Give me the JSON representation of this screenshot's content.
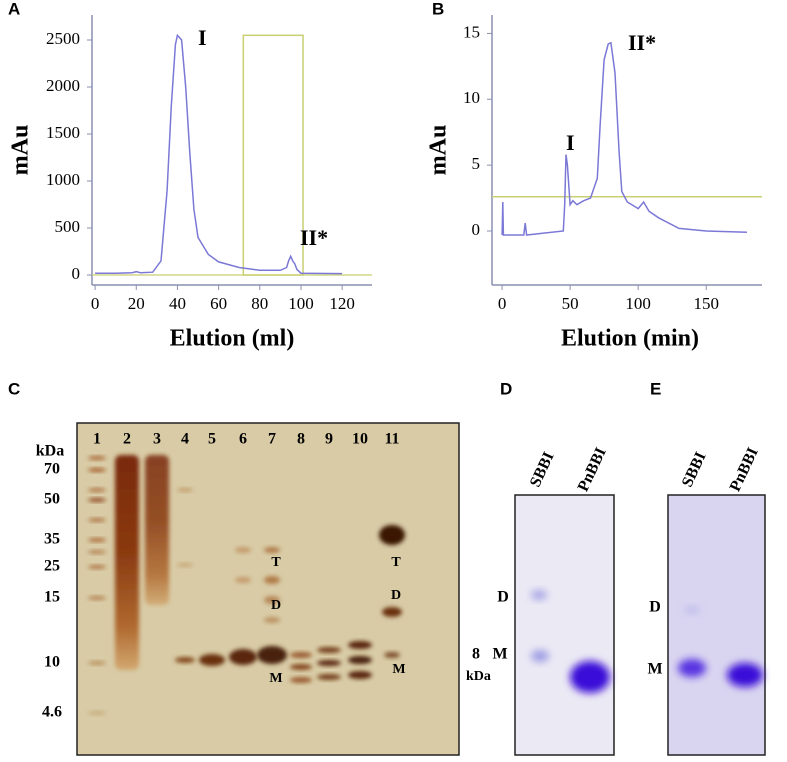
{
  "chart_data": [
    {
      "type": "line",
      "panel": "A",
      "x_label": "Elution (ml)",
      "y_label": "mAu",
      "xlim": [
        -1.5,
        134.5
      ],
      "ylim": [
        -106,
        2766
      ],
      "xticks": [
        0,
        20,
        40,
        60,
        80,
        100,
        120
      ],
      "yticks": [
        0,
        500,
        1000,
        1500,
        2000,
        2500
      ],
      "x": [
        0,
        10,
        18,
        20,
        22,
        28,
        32,
        35,
        37,
        39,
        40,
        42,
        44,
        46,
        48,
        50,
        55,
        60,
        70,
        80,
        90,
        93,
        94,
        95,
        96,
        97,
        98,
        100,
        120
      ],
      "series": [
        {
          "color": "#7b78d6",
          "values": [
            20,
            20,
            25,
            35,
            25,
            30,
            150,
            900,
            1800,
            2450,
            2550,
            2500,
            2000,
            1300,
            700,
            400,
            220,
            140,
            80,
            50,
            50,
            80,
            150,
            200,
            150,
            120,
            60,
            20,
            15
          ]
        }
      ],
      "highlight": {
        "x": [
          72,
          101
        ],
        "y": [
          0,
          2550
        ],
        "color": "#c9cf72"
      },
      "annotations": [
        "I",
        "II*"
      ]
    },
    {
      "type": "line",
      "panel": "B",
      "x_label": "Elution (min)",
      "y_label": "mAu",
      "xlim": [
        -7.4,
        191
      ],
      "ylim": [
        -4.1,
        16.4
      ],
      "xticks": [
        0,
        50,
        100,
        150
      ],
      "yticks": [
        0,
        5,
        10,
        15
      ],
      "x": [
        0,
        0.5,
        1,
        3,
        16,
        17,
        18,
        45,
        46,
        47,
        48,
        50,
        52,
        55,
        60,
        65,
        70,
        72,
        75,
        78,
        80,
        83,
        86,
        88,
        92,
        100,
        104,
        108,
        115,
        130,
        150,
        180
      ],
      "series": [
        {
          "color": "#7b78d6",
          "values": [
            -0.3,
            2.2,
            -0.3,
            -0.3,
            -0.3,
            0.6,
            -0.3,
            0,
            2,
            5.8,
            5,
            2,
            2.3,
            2,
            2.3,
            2.5,
            4,
            8,
            13,
            14.2,
            14.3,
            12,
            6,
            3,
            2.2,
            1.7,
            2.2,
            1.5,
            1,
            0.2,
            0,
            -0.1
          ]
        }
      ],
      "threshold": {
        "y": 2.6,
        "color": "#c9cf72"
      },
      "annotations": [
        "I",
        "II*"
      ]
    }
  ],
  "gels": {
    "C": {
      "panel": "C",
      "lanes": [
        "1",
        "2",
        "3",
        "4",
        "5",
        "6",
        "7",
        "8",
        "9",
        "10",
        "11"
      ],
      "unit": "kDa",
      "markers": [
        "70",
        "50",
        "35",
        "25",
        "15",
        "10",
        "4.6"
      ],
      "band_labels": [
        "T",
        "D",
        "M",
        "T",
        "D",
        "M"
      ],
      "size_note": [
        "8",
        "kDa"
      ]
    },
    "D": {
      "panel": "D",
      "lanes": [
        "SBBI",
        "PnBBI"
      ],
      "band_labels": [
        "D",
        "M"
      ]
    },
    "E": {
      "panel": "E",
      "lanes": [
        "SBBI",
        "PnBBI"
      ],
      "band_labels": [
        "D",
        "M"
      ]
    }
  }
}
